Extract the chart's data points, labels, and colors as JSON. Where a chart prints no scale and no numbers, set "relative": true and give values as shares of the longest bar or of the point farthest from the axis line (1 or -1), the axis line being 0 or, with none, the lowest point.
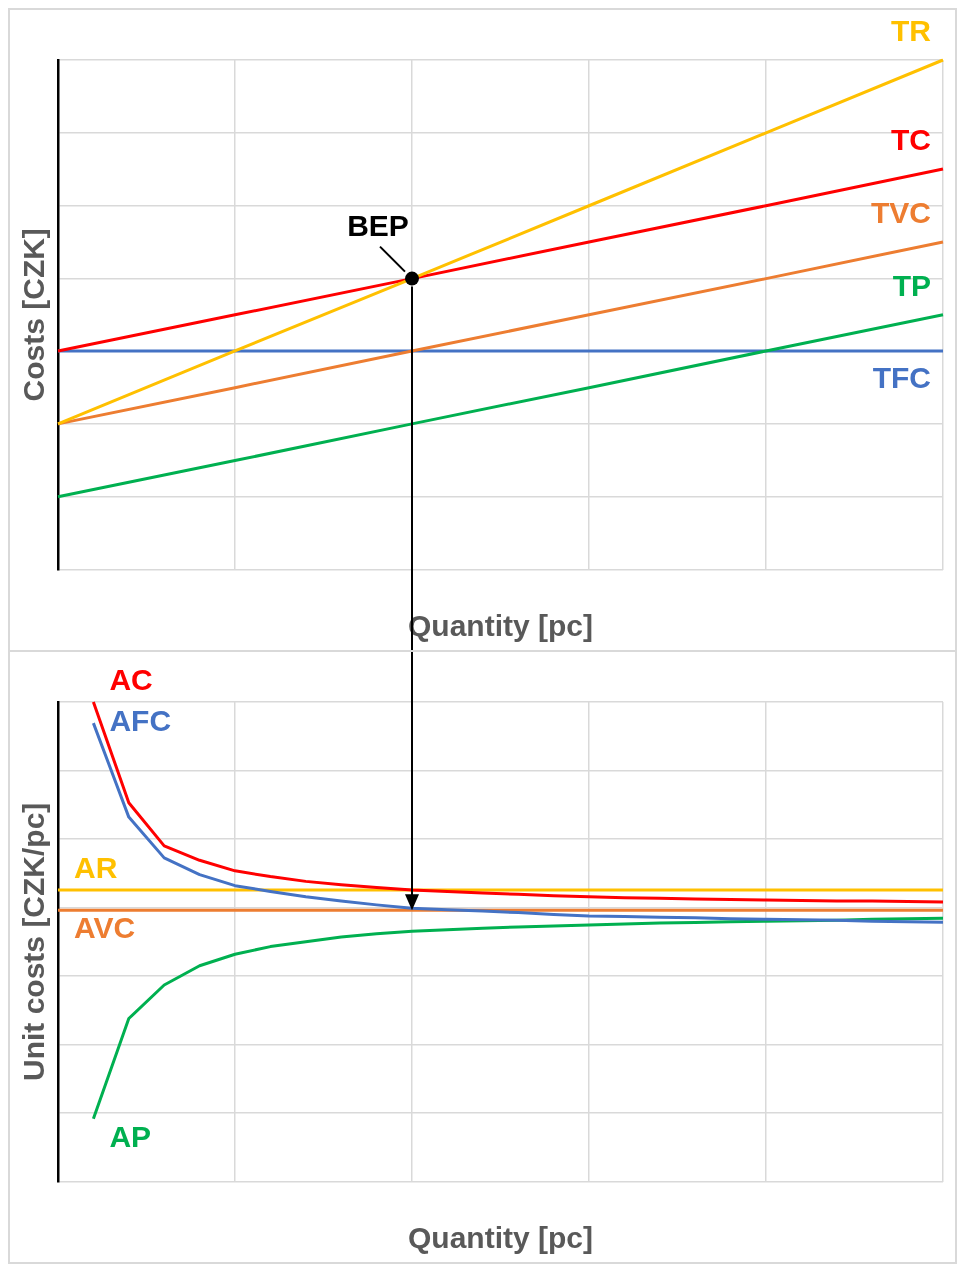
{
  "chart_data": [
    {
      "type": "line",
      "relative": true,
      "ylabel": "Costs [CZK]",
      "xlabel": "Quantity [pc]",
      "grid": true,
      "legend": false,
      "marker": "none",
      "line_style": "solid",
      "categories": [
        null,
        null,
        null,
        null,
        null,
        null
      ],
      "series": [
        {
          "name": "TR",
          "color": "#ffc000",
          "values": [
            0.286,
            0.429,
            0.571,
            0.714,
            0.857,
            1
          ]
        },
        {
          "name": "TC",
          "color": "#ff0000",
          "values": [
            0.429,
            0.5,
            0.571,
            0.643,
            0.714,
            0.786
          ]
        },
        {
          "name": "TVC",
          "color": "#ed7d31",
          "values": [
            0.286,
            0.357,
            0.429,
            0.5,
            0.571,
            0.643
          ]
        },
        {
          "name": "TP",
          "color": "#00b050",
          "values": [
            0.143,
            0.214,
            0.286,
            0.357,
            0.429,
            0.5
          ]
        },
        {
          "name": "TFC",
          "color": "#4472c4",
          "values": [
            0.429,
            0.429,
            0.429,
            0.429,
            0.429,
            0.429
          ]
        }
      ],
      "annotations": [
        "BEP"
      ]
    },
    {
      "type": "line",
      "relative": true,
      "ylabel": "Unit costs [CZK/pc]",
      "xlabel": "Quantity [pc]",
      "grid": true,
      "legend": false,
      "marker": "none",
      "line_style": "solid",
      "categories": [
        null,
        null,
        null,
        null,
        null,
        null,
        null,
        null,
        null,
        null,
        null,
        null,
        null,
        null,
        null,
        null,
        null,
        null,
        null,
        null,
        null,
        null,
        null,
        null,
        null,
        null
      ],
      "series": [
        {
          "name": "AC",
          "color": "#ff0000",
          "values": [
            null,
            1,
            0.79,
            0.7,
            0.67,
            0.648,
            0.636,
            0.626,
            0.619,
            0.613,
            0.608,
            0.605,
            0.602,
            0.599,
            0.596,
            0.594,
            0.592,
            0.591,
            0.589,
            0.588,
            0.587,
            0.586,
            0.585,
            0.585,
            0.584,
            0.583
          ]
        },
        {
          "name": "AFC",
          "color": "#4472c4",
          "values": [
            null,
            0.956,
            0.76,
            0.675,
            0.64,
            0.617,
            0.605,
            0.594,
            0.585,
            0.577,
            0.57,
            0.567,
            0.564,
            0.561,
            0.557,
            0.554,
            0.553,
            0.551,
            0.55,
            0.548,
            0.547,
            0.546,
            0.545,
            0.543,
            0.542,
            0.541
          ]
        },
        {
          "name": "AR",
          "color": "#ffc000",
          "values": [
            0.608,
            0.608,
            0.608,
            0.608,
            0.608,
            0.608,
            0.608,
            0.608,
            0.608,
            0.608,
            0.608,
            0.608,
            0.608,
            0.608,
            0.608,
            0.608,
            0.608,
            0.608,
            0.608,
            0.608,
            0.608,
            0.608,
            0.608,
            0.608,
            0.608,
            0.608
          ]
        },
        {
          "name": "AVC",
          "color": "#ed7d31",
          "values": [
            0.566,
            0.566,
            0.566,
            0.566,
            0.566,
            0.566,
            0.566,
            0.566,
            0.566,
            0.566,
            0.566,
            0.566,
            0.566,
            0.566,
            0.566,
            0.566,
            0.566,
            0.566,
            0.566,
            0.566,
            0.566,
            0.566,
            0.566,
            0.566,
            0.566,
            0.566
          ]
        },
        {
          "name": "AP",
          "color": "#00b050",
          "values": [
            null,
            0.131,
            0.34,
            0.41,
            0.45,
            0.474,
            0.49,
            0.5,
            0.51,
            0.517,
            0.522,
            0.525,
            0.528,
            0.531,
            0.533,
            0.535,
            0.537,
            0.539,
            0.54,
            0.542,
            0.543,
            0.544,
            0.545,
            0.547,
            0.548,
            0.549
          ]
        }
      ]
    }
  ]
}
